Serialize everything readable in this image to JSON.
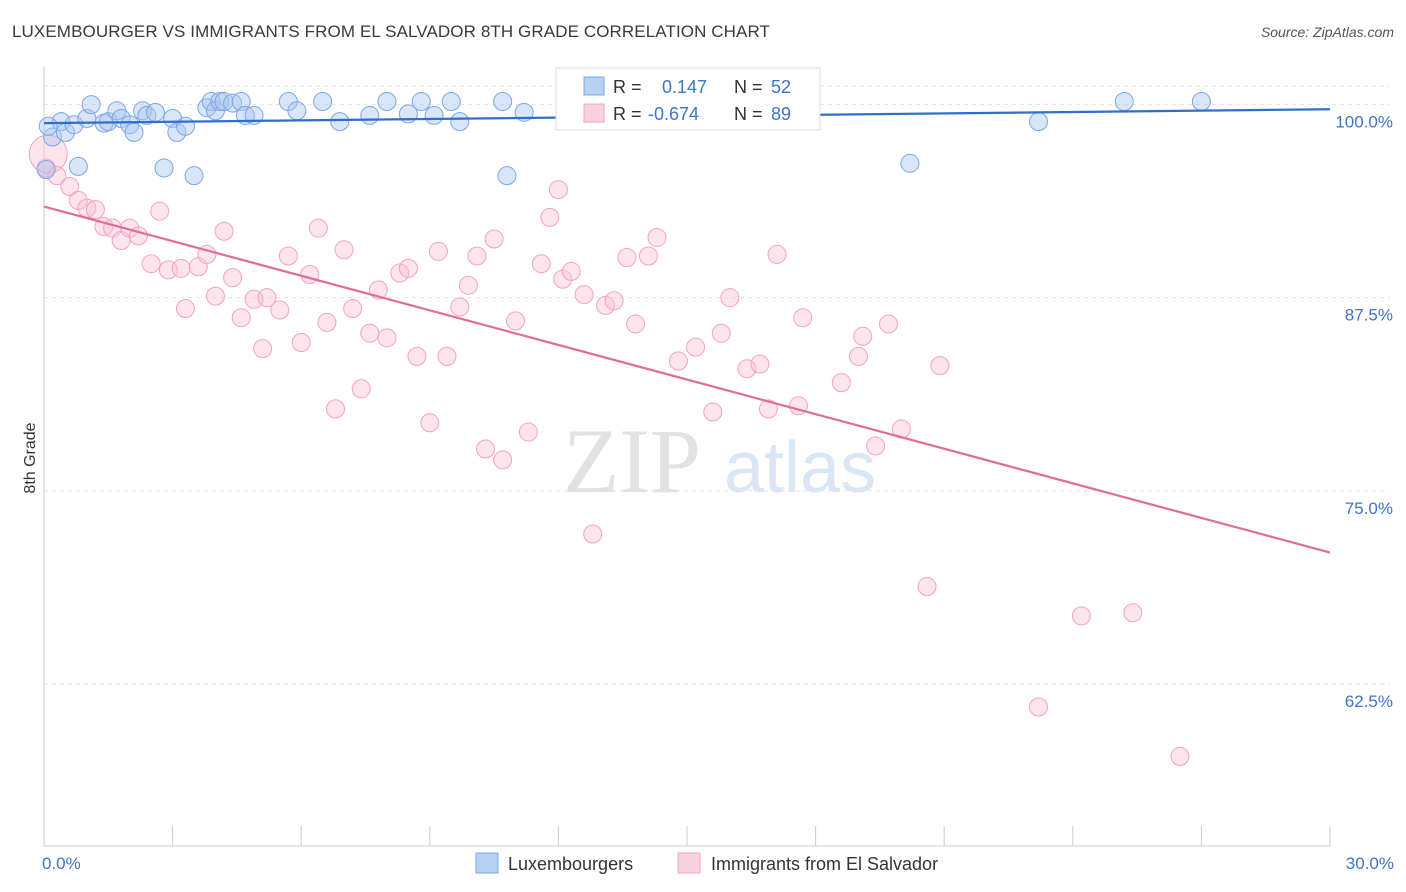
{
  "header": {
    "title": "LUXEMBOURGER VS IMMIGRANTS FROM EL SALVADOR 8TH GRADE CORRELATION CHART",
    "source": "Source: ZipAtlas.com"
  },
  "watermark": {
    "zip": "ZIP",
    "atlas": "atlas"
  },
  "legend": {
    "rows": [
      {
        "r_label": "R =",
        "r_value": "0.147",
        "n_label": "N =",
        "n_value": "52",
        "color": "#7aa7e6"
      },
      {
        "r_label": "R =",
        "r_value": "-0.674",
        "n_label": "N =",
        "n_value": "89",
        "color": "#f4a3bf"
      }
    ]
  },
  "bottom_legend": {
    "items": [
      {
        "label": "Luxembourgers",
        "color": "#7aa7e6"
      },
      {
        "label": "Immigrants from El Salvador",
        "color": "#f4a3bf"
      }
    ]
  },
  "chart_data": {
    "type": "scatter",
    "title": "LUXEMBOURGER VS IMMIGRANTS FROM EL SALVADOR 8TH GRADE CORRELATION CHART",
    "xlabel": "",
    "ylabel": "8th Grade",
    "xlim": [
      0,
      30
    ],
    "ylim": [
      52.0,
      102.5
    ],
    "x_tick_labels": [
      "0.0%",
      "30.0%"
    ],
    "y_ticks": [
      100.0,
      87.5,
      75.0,
      62.5
    ],
    "y_tick_labels": [
      "100.0%",
      "87.5%",
      "75.0%",
      "62.5%"
    ],
    "grid": true,
    "series": [
      {
        "name": "Luxembourgers",
        "color": "#7aa7e6",
        "trend": {
          "x": [
            0,
            30
          ],
          "y": [
            98.8,
            99.7
          ]
        },
        "points": [
          [
            0.05,
            95.8
          ],
          [
            0.2,
            97.9
          ],
          [
            0.4,
            98.9
          ],
          [
            0.5,
            98.2
          ],
          [
            0.7,
            98.7
          ],
          [
            0.8,
            96.0
          ],
          [
            1.0,
            99.1
          ],
          [
            1.1,
            100.0
          ],
          [
            1.4,
            98.8
          ],
          [
            1.5,
            98.9
          ],
          [
            1.7,
            99.6
          ],
          [
            1.8,
            99.1
          ],
          [
            2.0,
            98.7
          ],
          [
            2.1,
            98.2
          ],
          [
            2.3,
            99.6
          ],
          [
            2.4,
            99.3
          ],
          [
            2.6,
            99.5
          ],
          [
            2.8,
            95.9
          ],
          [
            3.0,
            99.1
          ],
          [
            3.1,
            98.2
          ],
          [
            3.3,
            98.6
          ],
          [
            3.5,
            95.4
          ],
          [
            3.8,
            99.8
          ],
          [
            3.9,
            100.2
          ],
          [
            4.0,
            99.6
          ],
          [
            4.1,
            100.2
          ],
          [
            4.2,
            100.2
          ],
          [
            4.4,
            100.1
          ],
          [
            4.6,
            100.2
          ],
          [
            4.7,
            99.3
          ],
          [
            4.9,
            99.3
          ],
          [
            5.7,
            100.2
          ],
          [
            5.9,
            99.6
          ],
          [
            6.5,
            100.2
          ],
          [
            6.9,
            98.9
          ],
          [
            7.6,
            99.3
          ],
          [
            8.0,
            100.2
          ],
          [
            8.5,
            99.4
          ],
          [
            8.8,
            100.2
          ],
          [
            9.1,
            99.3
          ],
          [
            9.5,
            100.2
          ],
          [
            9.7,
            98.9
          ],
          [
            10.7,
            100.2
          ],
          [
            10.8,
            95.4
          ],
          [
            11.2,
            99.5
          ],
          [
            13.0,
            99.4
          ],
          [
            15.0,
            99.4
          ],
          [
            20.2,
            96.2
          ],
          [
            23.2,
            98.9
          ],
          [
            25.2,
            100.2
          ],
          [
            27.0,
            100.2
          ],
          [
            0.1,
            98.6
          ]
        ]
      },
      {
        "name": "Immigrants from El Salvador",
        "color": "#f4a3bf",
        "trend": {
          "x": [
            0,
            30
          ],
          "y": [
            93.4,
            71.0
          ]
        },
        "points": [
          [
            0.05,
            95.9
          ],
          [
            0.1,
            96.8
          ],
          [
            0.3,
            95.4
          ],
          [
            0.6,
            94.7
          ],
          [
            0.8,
            93.8
          ],
          [
            1.0,
            93.3
          ],
          [
            1.2,
            93.2
          ],
          [
            1.4,
            92.1
          ],
          [
            1.6,
            92.0
          ],
          [
            1.8,
            91.2
          ],
          [
            2.0,
            92.0
          ],
          [
            2.2,
            91.5
          ],
          [
            2.5,
            89.7
          ],
          [
            2.7,
            93.1
          ],
          [
            2.9,
            89.3
          ],
          [
            3.2,
            89.4
          ],
          [
            3.3,
            86.8
          ],
          [
            3.6,
            89.5
          ],
          [
            3.8,
            90.3
          ],
          [
            4.0,
            87.6
          ],
          [
            4.2,
            91.8
          ],
          [
            4.4,
            88.8
          ],
          [
            4.6,
            86.2
          ],
          [
            4.9,
            87.4
          ],
          [
            5.1,
            84.2
          ],
          [
            5.2,
            87.5
          ],
          [
            5.5,
            86.7
          ],
          [
            5.7,
            90.2
          ],
          [
            6.0,
            84.6
          ],
          [
            6.2,
            89.0
          ],
          [
            6.4,
            92.0
          ],
          [
            6.6,
            85.9
          ],
          [
            6.8,
            80.3
          ],
          [
            7.0,
            90.6
          ],
          [
            7.2,
            86.8
          ],
          [
            7.4,
            81.6
          ],
          [
            7.6,
            85.2
          ],
          [
            7.8,
            88.0
          ],
          [
            8.0,
            84.9
          ],
          [
            8.3,
            89.1
          ],
          [
            8.5,
            89.4
          ],
          [
            8.7,
            83.7
          ],
          [
            9.0,
            79.4
          ],
          [
            9.2,
            90.5
          ],
          [
            9.4,
            83.7
          ],
          [
            9.7,
            86.9
          ],
          [
            9.9,
            88.3
          ],
          [
            10.1,
            90.2
          ],
          [
            10.3,
            77.7
          ],
          [
            10.5,
            91.3
          ],
          [
            10.7,
            77.0
          ],
          [
            11.0,
            86.0
          ],
          [
            11.3,
            78.8
          ],
          [
            11.6,
            89.7
          ],
          [
            11.8,
            92.7
          ],
          [
            12.0,
            94.5
          ],
          [
            12.1,
            88.7
          ],
          [
            12.3,
            89.2
          ],
          [
            12.6,
            87.7
          ],
          [
            12.8,
            72.2
          ],
          [
            13.1,
            87.0
          ],
          [
            13.3,
            87.3
          ],
          [
            13.6,
            90.1
          ],
          [
            13.8,
            85.8
          ],
          [
            14.1,
            90.2
          ],
          [
            14.3,
            91.4
          ],
          [
            14.8,
            83.4
          ],
          [
            15.2,
            84.3
          ],
          [
            15.6,
            80.1
          ],
          [
            15.8,
            85.2
          ],
          [
            16.0,
            87.5
          ],
          [
            16.4,
            82.9
          ],
          [
            16.7,
            83.2
          ],
          [
            16.9,
            80.3
          ],
          [
            17.1,
            90.3
          ],
          [
            17.6,
            80.5
          ],
          [
            17.7,
            86.2
          ],
          [
            18.6,
            82.0
          ],
          [
            19.0,
            83.7
          ],
          [
            19.1,
            85.0
          ],
          [
            19.4,
            77.9
          ],
          [
            19.7,
            85.8
          ],
          [
            20.0,
            79.0
          ],
          [
            20.6,
            68.8
          ],
          [
            20.9,
            83.1
          ],
          [
            23.2,
            61.0
          ],
          [
            24.2,
            66.9
          ],
          [
            25.4,
            67.1
          ],
          [
            26.5,
            57.8
          ]
        ]
      }
    ]
  }
}
